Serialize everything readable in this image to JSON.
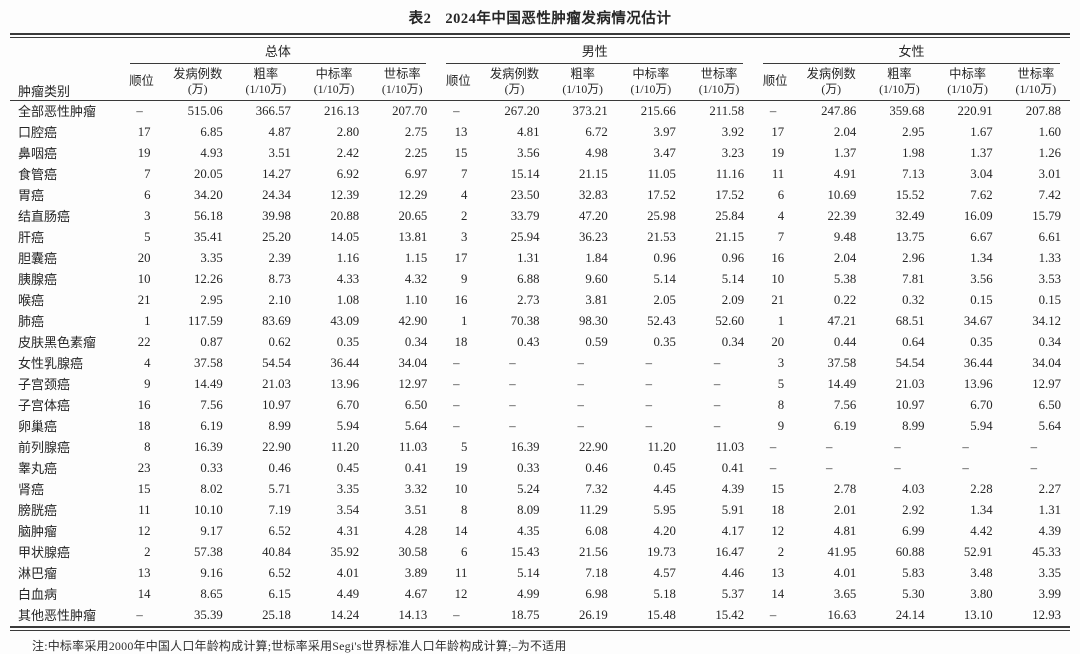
{
  "page": {
    "title_prefix": "表2",
    "title_main": "2024年中国恶性肿瘤发病情况估计",
    "note": "注:中标率采用2000年中国人口年龄构成计算;世标率采用Segi's世界标准人口年龄构成计算;–为不适用"
  },
  "table": {
    "category_header": "肿瘤类别",
    "groups": [
      "总体",
      "男性",
      "女性"
    ],
    "sub_columns": [
      {
        "label": "顺位",
        "unit": ""
      },
      {
        "label": "发病例数",
        "unit": "(万)"
      },
      {
        "label": "粗率",
        "unit": "(1/10万)"
      },
      {
        "label": "中标率",
        "unit": "(1/10万)"
      },
      {
        "label": "世标率",
        "unit": "(1/10万)"
      }
    ],
    "rows": [
      {
        "category": "全部恶性肿瘤",
        "overall": [
          "–",
          "515.06",
          "366.57",
          "216.13",
          "207.70"
        ],
        "male": [
          "–",
          "267.20",
          "373.21",
          "215.66",
          "211.58"
        ],
        "female": [
          "–",
          "247.86",
          "359.68",
          "220.91",
          "207.88"
        ]
      },
      {
        "category": "口腔癌",
        "overall": [
          "17",
          "6.85",
          "4.87",
          "2.80",
          "2.75"
        ],
        "male": [
          "13",
          "4.81",
          "6.72",
          "3.97",
          "3.92"
        ],
        "female": [
          "17",
          "2.04",
          "2.95",
          "1.67",
          "1.60"
        ]
      },
      {
        "category": "鼻咽癌",
        "overall": [
          "19",
          "4.93",
          "3.51",
          "2.42",
          "2.25"
        ],
        "male": [
          "15",
          "3.56",
          "4.98",
          "3.47",
          "3.23"
        ],
        "female": [
          "19",
          "1.37",
          "1.98",
          "1.37",
          "1.26"
        ]
      },
      {
        "category": "食管癌",
        "overall": [
          "7",
          "20.05",
          "14.27",
          "6.92",
          "6.97"
        ],
        "male": [
          "7",
          "15.14",
          "21.15",
          "11.05",
          "11.16"
        ],
        "female": [
          "11",
          "4.91",
          "7.13",
          "3.04",
          "3.01"
        ]
      },
      {
        "category": "胃癌",
        "overall": [
          "6",
          "34.20",
          "24.34",
          "12.39",
          "12.29"
        ],
        "male": [
          "4",
          "23.50",
          "32.83",
          "17.52",
          "17.52"
        ],
        "female": [
          "6",
          "10.69",
          "15.52",
          "7.62",
          "7.42"
        ]
      },
      {
        "category": "结直肠癌",
        "overall": [
          "3",
          "56.18",
          "39.98",
          "20.88",
          "20.65"
        ],
        "male": [
          "2",
          "33.79",
          "47.20",
          "25.98",
          "25.84"
        ],
        "female": [
          "4",
          "22.39",
          "32.49",
          "16.09",
          "15.79"
        ]
      },
      {
        "category": "肝癌",
        "overall": [
          "5",
          "35.41",
          "25.20",
          "14.05",
          "13.81"
        ],
        "male": [
          "3",
          "25.94",
          "36.23",
          "21.53",
          "21.15"
        ],
        "female": [
          "7",
          "9.48",
          "13.75",
          "6.67",
          "6.61"
        ]
      },
      {
        "category": "胆囊癌",
        "overall": [
          "20",
          "3.35",
          "2.39",
          "1.16",
          "1.15"
        ],
        "male": [
          "17",
          "1.31",
          "1.84",
          "0.96",
          "0.96"
        ],
        "female": [
          "16",
          "2.04",
          "2.96",
          "1.34",
          "1.33"
        ]
      },
      {
        "category": "胰腺癌",
        "overall": [
          "10",
          "12.26",
          "8.73",
          "4.33",
          "4.32"
        ],
        "male": [
          "9",
          "6.88",
          "9.60",
          "5.14",
          "5.14"
        ],
        "female": [
          "10",
          "5.38",
          "7.81",
          "3.56",
          "3.53"
        ]
      },
      {
        "category": "喉癌",
        "overall": [
          "21",
          "2.95",
          "2.10",
          "1.08",
          "1.10"
        ],
        "male": [
          "16",
          "2.73",
          "3.81",
          "2.05",
          "2.09"
        ],
        "female": [
          "21",
          "0.22",
          "0.32",
          "0.15",
          "0.15"
        ]
      },
      {
        "category": "肺癌",
        "overall": [
          "1",
          "117.59",
          "83.69",
          "43.09",
          "42.90"
        ],
        "male": [
          "1",
          "70.38",
          "98.30",
          "52.43",
          "52.60"
        ],
        "female": [
          "1",
          "47.21",
          "68.51",
          "34.67",
          "34.12"
        ]
      },
      {
        "category": "皮肤黑色素瘤",
        "overall": [
          "22",
          "0.87",
          "0.62",
          "0.35",
          "0.34"
        ],
        "male": [
          "18",
          "0.43",
          "0.59",
          "0.35",
          "0.34"
        ],
        "female": [
          "20",
          "0.44",
          "0.64",
          "0.35",
          "0.34"
        ]
      },
      {
        "category": "女性乳腺癌",
        "overall": [
          "4",
          "37.58",
          "54.54",
          "36.44",
          "34.04"
        ],
        "male": [
          "–",
          "–",
          "–",
          "–",
          "–"
        ],
        "female": [
          "3",
          "37.58",
          "54.54",
          "36.44",
          "34.04"
        ]
      },
      {
        "category": "子宫颈癌",
        "overall": [
          "9",
          "14.49",
          "21.03",
          "13.96",
          "12.97"
        ],
        "male": [
          "–",
          "–",
          "–",
          "–",
          "–"
        ],
        "female": [
          "5",
          "14.49",
          "21.03",
          "13.96",
          "12.97"
        ]
      },
      {
        "category": "子宫体癌",
        "overall": [
          "16",
          "7.56",
          "10.97",
          "6.70",
          "6.50"
        ],
        "male": [
          "–",
          "–",
          "–",
          "–",
          "–"
        ],
        "female": [
          "8",
          "7.56",
          "10.97",
          "6.70",
          "6.50"
        ]
      },
      {
        "category": "卵巢癌",
        "overall": [
          "18",
          "6.19",
          "8.99",
          "5.94",
          "5.64"
        ],
        "male": [
          "–",
          "–",
          "–",
          "–",
          "–"
        ],
        "female": [
          "9",
          "6.19",
          "8.99",
          "5.94",
          "5.64"
        ]
      },
      {
        "category": "前列腺癌",
        "overall": [
          "8",
          "16.39",
          "22.90",
          "11.20",
          "11.03"
        ],
        "male": [
          "5",
          "16.39",
          "22.90",
          "11.20",
          "11.03"
        ],
        "female": [
          "–",
          "–",
          "–",
          "–",
          "–"
        ]
      },
      {
        "category": "睾丸癌",
        "overall": [
          "23",
          "0.33",
          "0.46",
          "0.45",
          "0.41"
        ],
        "male": [
          "19",
          "0.33",
          "0.46",
          "0.45",
          "0.41"
        ],
        "female": [
          "–",
          "–",
          "–",
          "–",
          "–"
        ]
      },
      {
        "category": "肾癌",
        "overall": [
          "15",
          "8.02",
          "5.71",
          "3.35",
          "3.32"
        ],
        "male": [
          "10",
          "5.24",
          "7.32",
          "4.45",
          "4.39"
        ],
        "female": [
          "15",
          "2.78",
          "4.03",
          "2.28",
          "2.27"
        ]
      },
      {
        "category": "膀胱癌",
        "overall": [
          "11",
          "10.10",
          "7.19",
          "3.54",
          "3.51"
        ],
        "male": [
          "8",
          "8.09",
          "11.29",
          "5.95",
          "5.91"
        ],
        "female": [
          "18",
          "2.01",
          "2.92",
          "1.34",
          "1.31"
        ]
      },
      {
        "category": "脑肿瘤",
        "overall": [
          "12",
          "9.17",
          "6.52",
          "4.31",
          "4.28"
        ],
        "male": [
          "14",
          "4.35",
          "6.08",
          "4.20",
          "4.17"
        ],
        "female": [
          "12",
          "4.81",
          "6.99",
          "4.42",
          "4.39"
        ]
      },
      {
        "category": "甲状腺癌",
        "overall": [
          "2",
          "57.38",
          "40.84",
          "35.92",
          "30.58"
        ],
        "male": [
          "6",
          "15.43",
          "21.56",
          "19.73",
          "16.47"
        ],
        "female": [
          "2",
          "41.95",
          "60.88",
          "52.91",
          "45.33"
        ]
      },
      {
        "category": "淋巴瘤",
        "overall": [
          "13",
          "9.16",
          "6.52",
          "4.01",
          "3.89"
        ],
        "male": [
          "11",
          "5.14",
          "7.18",
          "4.57",
          "4.46"
        ],
        "female": [
          "13",
          "4.01",
          "5.83",
          "3.48",
          "3.35"
        ]
      },
      {
        "category": "白血病",
        "overall": [
          "14",
          "8.65",
          "6.15",
          "4.49",
          "4.67"
        ],
        "male": [
          "12",
          "4.99",
          "6.98",
          "5.18",
          "5.37"
        ],
        "female": [
          "14",
          "3.65",
          "5.30",
          "3.80",
          "3.99"
        ]
      },
      {
        "category": "其他恶性肿瘤",
        "overall": [
          "–",
          "35.39",
          "25.18",
          "14.24",
          "14.13"
        ],
        "male": [
          "–",
          "18.75",
          "26.19",
          "15.48",
          "15.42"
        ],
        "female": [
          "–",
          "16.63",
          "24.14",
          "13.10",
          "12.93"
        ]
      }
    ]
  }
}
